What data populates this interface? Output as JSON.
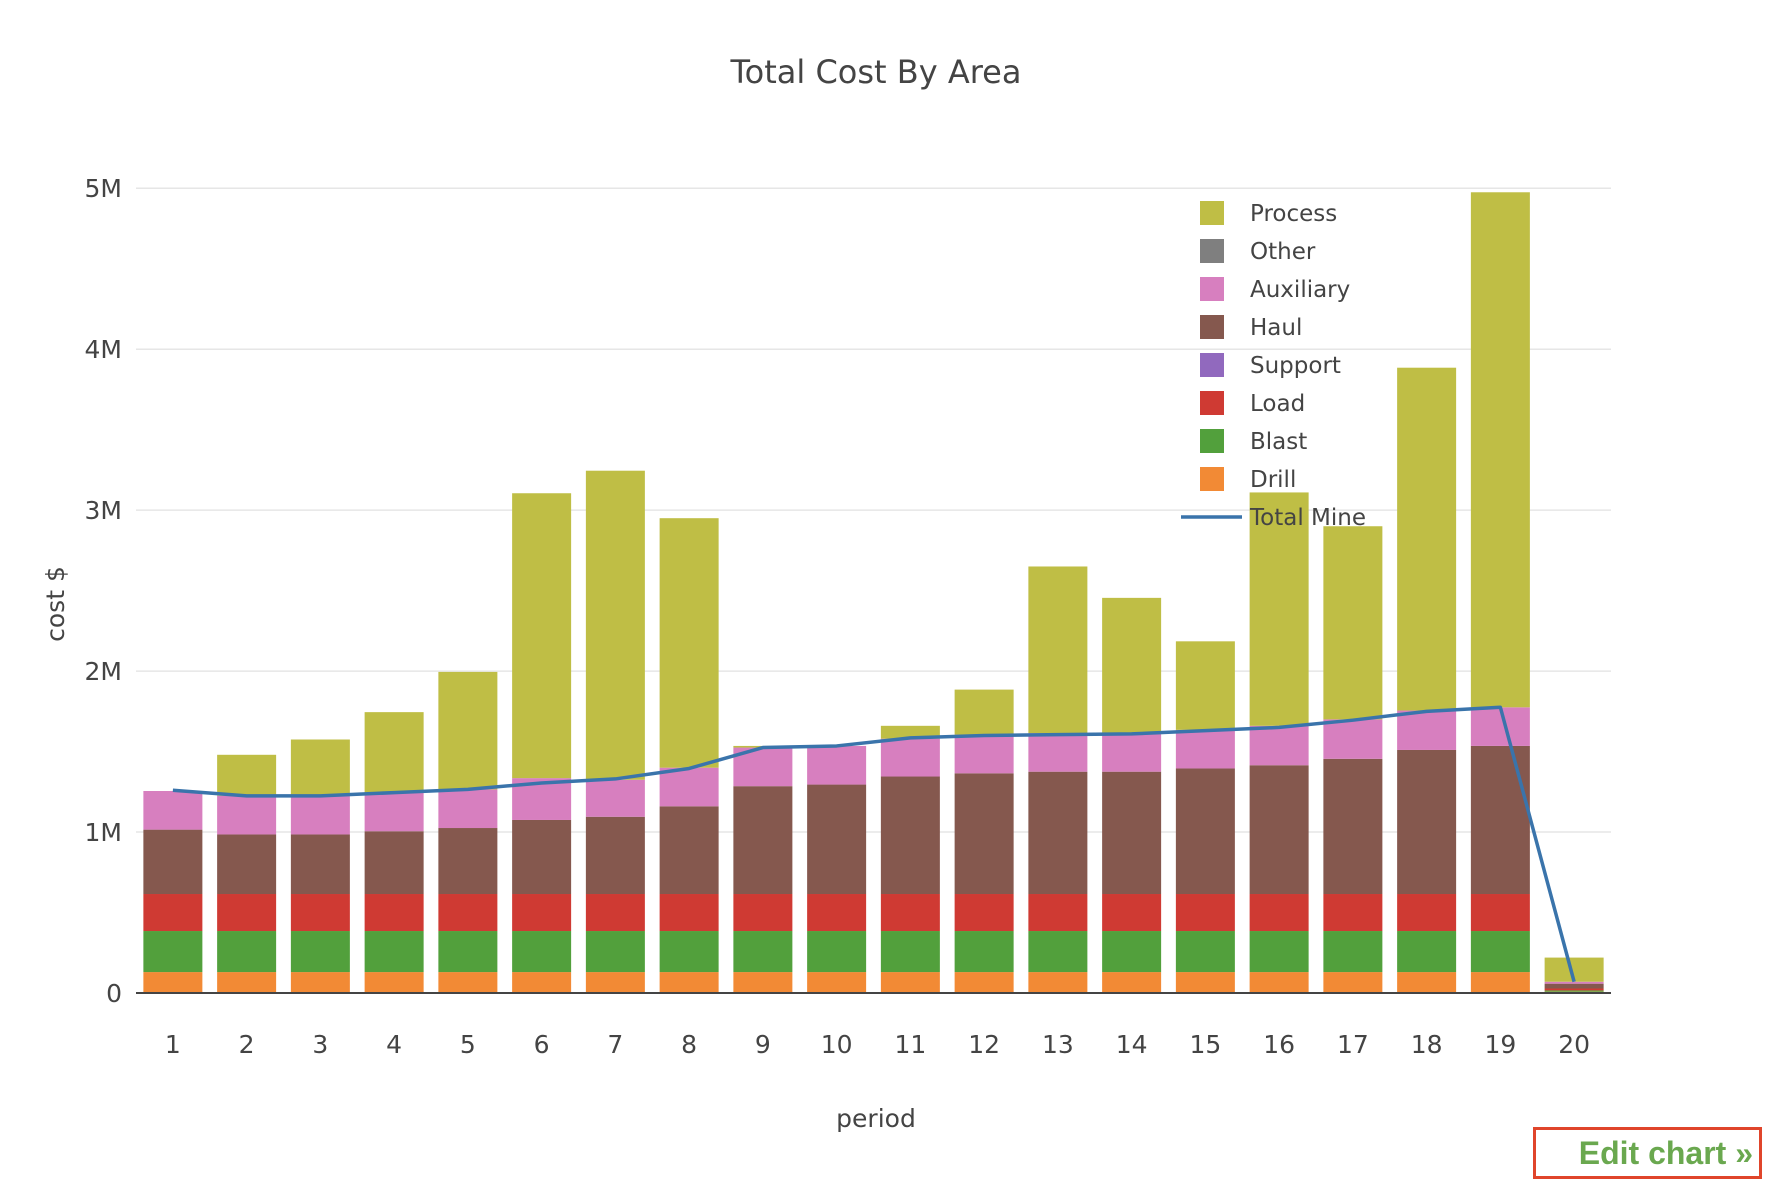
{
  "chart_data": {
    "type": "bar",
    "stacked": true,
    "title": "Total Cost By Area",
    "xlabel": "period",
    "ylabel": "cost $",
    "ylim": [
      0,
      5250000
    ],
    "yticks": [
      0,
      1000000,
      2000000,
      3000000,
      4000000,
      5000000
    ],
    "ytick_labels": [
      "0",
      "1M",
      "2M",
      "3M",
      "4M",
      "5M"
    ],
    "grid": true,
    "legend_position": "top-right",
    "categories": [
      "1",
      "2",
      "3",
      "4",
      "5",
      "6",
      "7",
      "8",
      "9",
      "10",
      "11",
      "12",
      "13",
      "14",
      "15",
      "16",
      "17",
      "18",
      "19",
      "20"
    ],
    "series": [
      {
        "name": "Drill",
        "color": "#f28a35",
        "values": [
          130000,
          130000,
          130000,
          130000,
          130000,
          130000,
          130000,
          130000,
          130000,
          130000,
          130000,
          130000,
          130000,
          130000,
          130000,
          130000,
          130000,
          130000,
          130000,
          8000
        ]
      },
      {
        "name": "Blast",
        "color": "#52a03c",
        "values": [
          255000,
          255000,
          255000,
          255000,
          255000,
          255000,
          255000,
          255000,
          255000,
          255000,
          255000,
          255000,
          255000,
          255000,
          255000,
          255000,
          255000,
          255000,
          255000,
          8000
        ]
      },
      {
        "name": "Load",
        "color": "#cf3a33",
        "values": [
          230000,
          230000,
          230000,
          230000,
          230000,
          230000,
          230000,
          230000,
          230000,
          230000,
          230000,
          230000,
          230000,
          230000,
          230000,
          230000,
          230000,
          230000,
          230000,
          12000
        ]
      },
      {
        "name": "Support",
        "color": "#9169be",
        "values": [
          0,
          0,
          0,
          0,
          0,
          0,
          0,
          0,
          0,
          0,
          0,
          0,
          0,
          0,
          0,
          0,
          0,
          0,
          0,
          0
        ]
      },
      {
        "name": "Haul",
        "color": "#85584e",
        "values": [
          400000,
          370000,
          370000,
          390000,
          410000,
          460000,
          480000,
          545000,
          670000,
          680000,
          730000,
          750000,
          760000,
          760000,
          780000,
          800000,
          840000,
          895000,
          920000,
          30000
        ]
      },
      {
        "name": "Auxiliary",
        "color": "#d77fbf",
        "values": [
          240000,
          240000,
          240000,
          240000,
          240000,
          260000,
          230000,
          240000,
          240000,
          240000,
          235000,
          240000,
          240000,
          240000,
          240000,
          245000,
          245000,
          245000,
          240000,
          12000
        ]
      },
      {
        "name": "Other",
        "color": "#7f7f7f",
        "values": [
          0,
          0,
          0,
          0,
          0,
          0,
          0,
          0,
          0,
          0,
          0,
          0,
          0,
          0,
          0,
          0,
          0,
          0,
          0,
          0
        ]
      },
      {
        "name": "Process",
        "color": "#bfbe45",
        "values": [
          0,
          255000,
          350000,
          500000,
          730000,
          1770000,
          1920000,
          1550000,
          10000,
          0,
          80000,
          280000,
          1035000,
          840000,
          550000,
          1450000,
          1200000,
          2130000,
          3200000,
          150000
        ]
      }
    ],
    "line_series": {
      "name": "Total Mine",
      "color": "#3a74ab",
      "values": [
        1260000,
        1225000,
        1225000,
        1245000,
        1265000,
        1305000,
        1330000,
        1395000,
        1525000,
        1535000,
        1585000,
        1600000,
        1605000,
        1610000,
        1630000,
        1650000,
        1695000,
        1750000,
        1775000,
        70000
      ]
    },
    "legend_order": [
      "Process",
      "Other",
      "Auxiliary",
      "Haul",
      "Support",
      "Load",
      "Blast",
      "Drill",
      "Total Mine"
    ]
  },
  "edit_link": {
    "label": "Edit chart »"
  }
}
